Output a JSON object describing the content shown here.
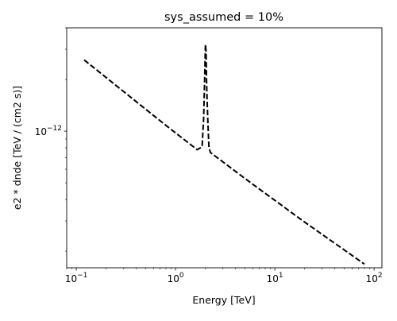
{
  "chart_data": {
    "type": "line",
    "title": "sys_assumed = 10%",
    "xlabel": "Energy [TeV]",
    "ylabel": "e2 * dnde [TeV / (cm2 s)]",
    "xscale": "log",
    "yscale": "log",
    "xlim": [
      0.08,
      120
    ],
    "ylim": [
      1.6e-13,
      4e-12
    ],
    "grid": false,
    "legend": "none",
    "x_ticks": [
      {
        "base": "10",
        "exp": "−1",
        "value": 0.1
      },
      {
        "base": "10",
        "exp": "0",
        "value": 1
      },
      {
        "base": "10",
        "exp": "1",
        "value": 10
      },
      {
        "base": "10",
        "exp": "2",
        "value": 100
      }
    ],
    "y_ticks": [
      {
        "base": "10",
        "exp": "−12",
        "value": 1e-12
      }
    ],
    "series": [
      {
        "style": "dashed",
        "color": "#000000",
        "x": [
          0.12,
          0.3,
          0.8,
          1.65,
          1.85,
          1.92,
          1.97,
          2.0,
          2.03,
          2.05,
          2.08,
          2.12,
          2.17,
          2.25,
          5,
          20,
          80
        ],
        "y": [
          2.6e-12,
          1.7e-12,
          1.08e-12,
          7.8e-13,
          8.1e-13,
          1.2e-12,
          2.2e-12,
          3.2e-12,
          2.9e-12,
          2e-12,
          1.5e-12,
          1.1e-12,
          8e-13,
          7.5e-13,
          5.3e-13,
          2.95e-13,
          1.68e-13
        ]
      }
    ]
  }
}
